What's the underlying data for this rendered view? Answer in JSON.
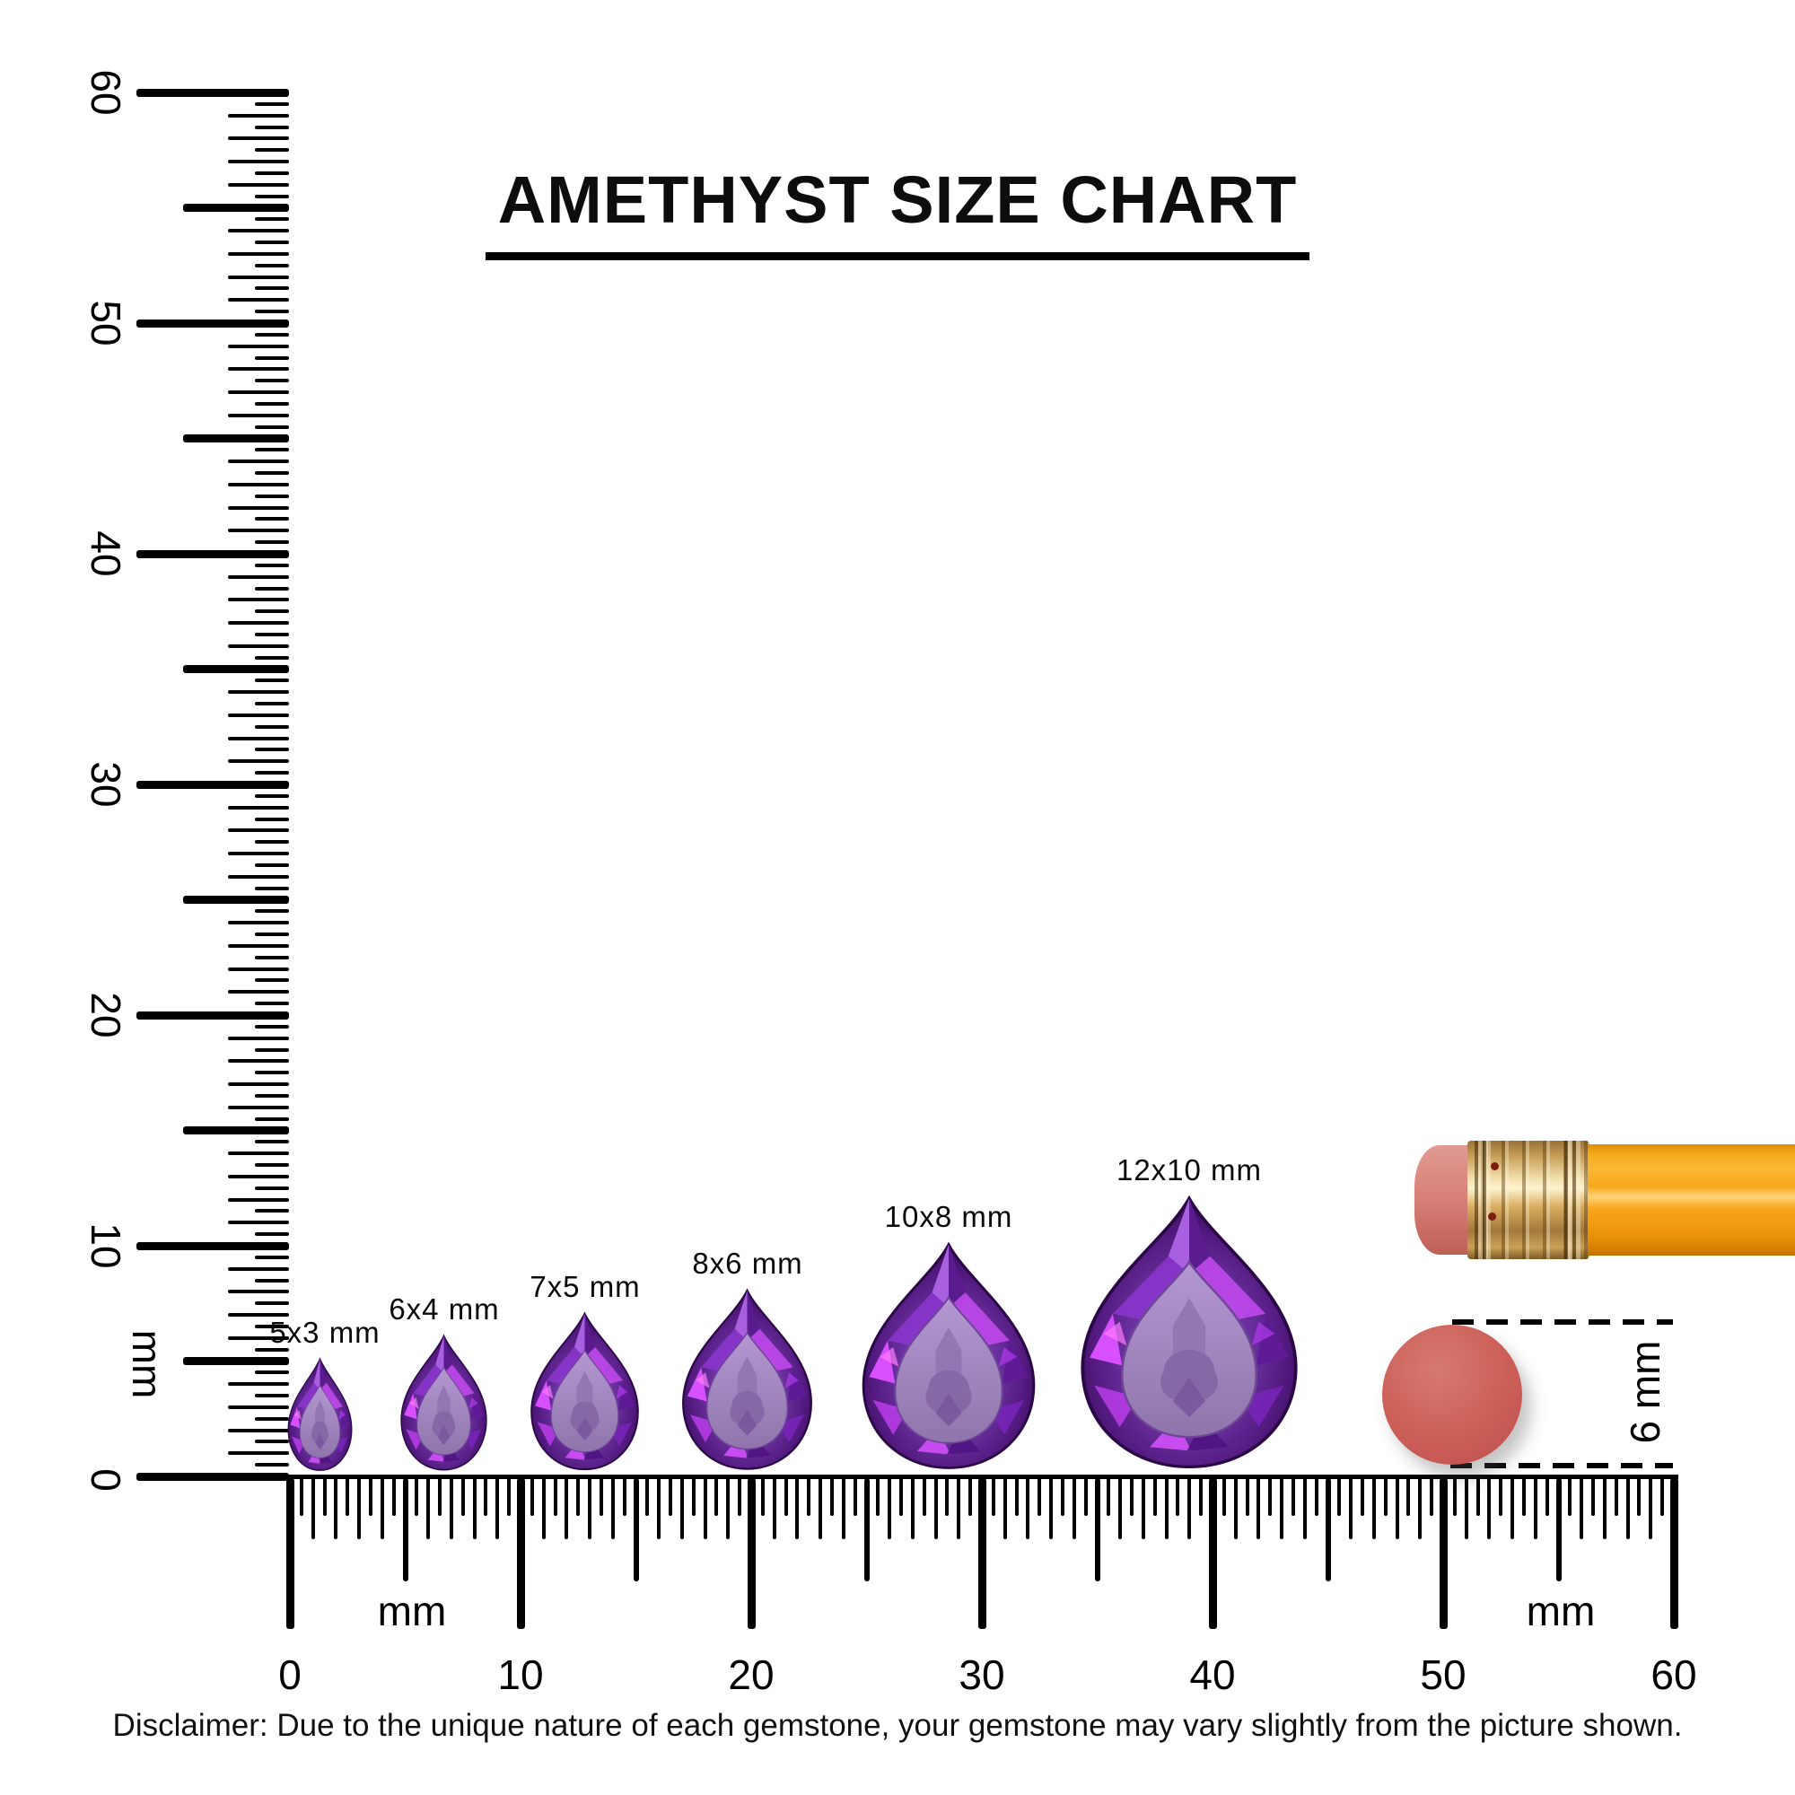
{
  "title": "AMETHYST SIZE CHART",
  "gem_name": "Amethyst",
  "gem_cut": "pear",
  "gems": [
    {
      "label": "5x3 mm",
      "length_mm": 5,
      "width_mm": 3
    },
    {
      "label": "6x4 mm",
      "length_mm": 6,
      "width_mm": 4
    },
    {
      "label": "7x5 mm",
      "length_mm": 7,
      "width_mm": 5
    },
    {
      "label": "8x6 mm",
      "length_mm": 8,
      "width_mm": 6
    },
    {
      "label": "10x8 mm",
      "length_mm": 10,
      "width_mm": 8
    },
    {
      "label": "12x10 mm",
      "length_mm": 12,
      "width_mm": 10
    }
  ],
  "rulers": {
    "vertical": {
      "min_mm": 0,
      "max_mm": 60,
      "tick_step_mm": 0.5,
      "numbered_every_mm": 10,
      "labels": [
        "0",
        "10",
        "20",
        "30",
        "40",
        "50",
        "60"
      ],
      "unit_label": "mm"
    },
    "horizontal": {
      "min_mm": 0,
      "max_mm": 60,
      "tick_step_mm": 0.5,
      "numbered_every_mm": 10,
      "labels": [
        "0",
        "10",
        "20",
        "30",
        "40",
        "50",
        "60"
      ],
      "unit_label_left": "mm",
      "unit_label_right": "mm"
    }
  },
  "reference": {
    "disc_diameter_label": "6 mm"
  },
  "disclaimer": "Disclaimer: Due to the unique nature of each gemstone, your gemstone may vary slightly from the picture shown.",
  "colors": {
    "gem_main": "#6f35a5",
    "gem_dark": "#32094f",
    "gem_bright": "#d74fff",
    "gem_table": "#a586c2",
    "disc": "#cb5f58",
    "pencil_body": "#f7a81c",
    "pencil_eraser": "#d88279",
    "pencil_ferrule": "#d8ac60",
    "ink": "#000000"
  }
}
